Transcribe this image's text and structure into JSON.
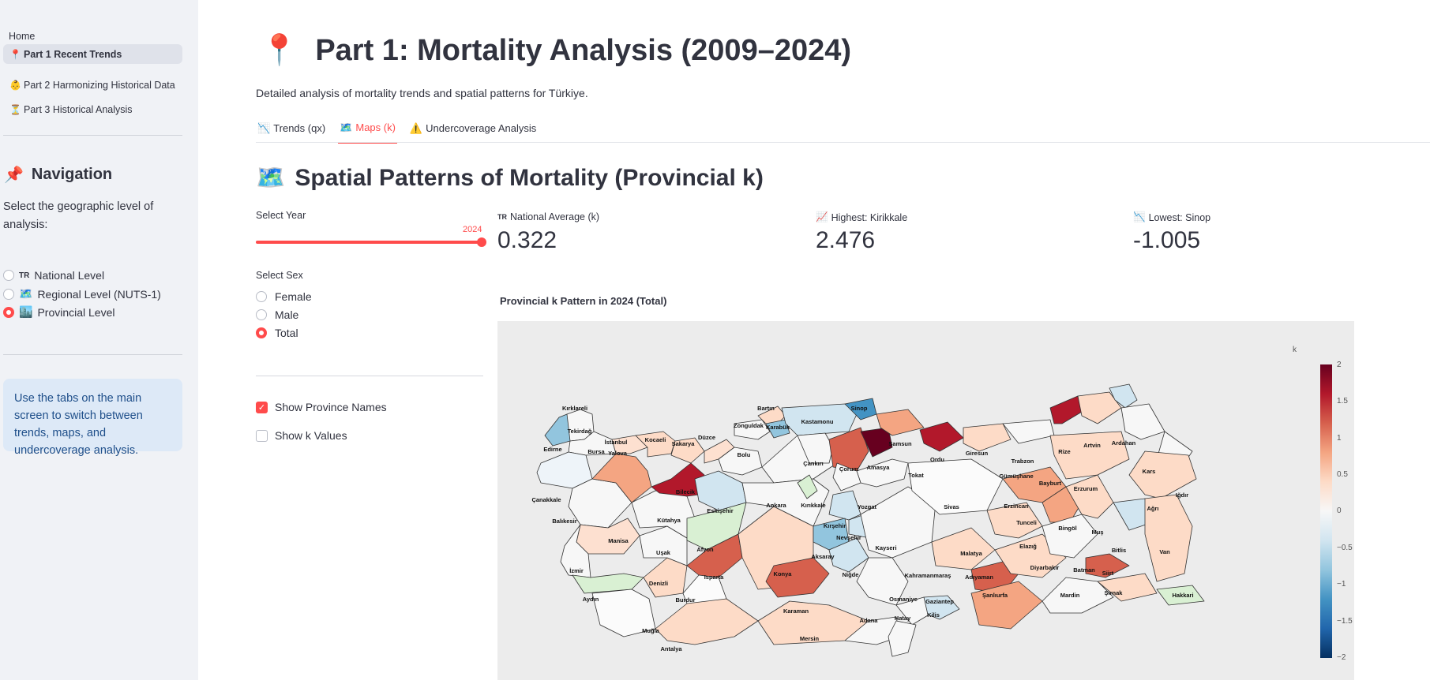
{
  "sidebar": {
    "home_label": "Home",
    "pages": [
      {
        "icon": "📍",
        "label": "Part 1 Recent Trends",
        "active": true
      },
      {
        "icon": "👶",
        "label": "Part 2 Harmonizing Historical Data",
        "active": false
      },
      {
        "icon": "⏳",
        "label": "Part 3 Historical Analysis",
        "active": false
      }
    ],
    "nav_icon": "📌",
    "nav_title": "Navigation",
    "nav_desc": "Select the geographic level of analysis:",
    "levels": [
      {
        "icon": "TR",
        "label": "National Level",
        "selected": false
      },
      {
        "icon": "🗺️",
        "label": "Regional Level (NUTS-1)",
        "selected": false
      },
      {
        "icon": "🏙️",
        "label": "Provincial Level",
        "selected": true
      }
    ],
    "info": "Use the tabs on the main screen to switch between trends, maps, and undercoverage analysis."
  },
  "header": {
    "icon": "📍",
    "title": "Part 1: Mortality Analysis (2009–2024)",
    "subtitle": "Detailed analysis of mortality trends and spatial patterns for Türkiye."
  },
  "tabs": [
    {
      "icon": "📉",
      "label": "Trends (qx)",
      "active": false
    },
    {
      "icon": "🗺️",
      "label": "Maps (k)",
      "active": true
    },
    {
      "icon": "⚠️",
      "label": "Undercoverage Analysis",
      "active": false
    }
  ],
  "section": {
    "icon": "🗺️",
    "title": "Spatial Patterns of Mortality (Provincial k)"
  },
  "controls": {
    "year_label": "Select Year",
    "year_value": "2024",
    "year_fraction": 1.0,
    "sex_label": "Select Sex",
    "sex_options": [
      {
        "label": "Female",
        "selected": false
      },
      {
        "label": "Male",
        "selected": false
      },
      {
        "label": "Total",
        "selected": true
      }
    ],
    "show_names_label": "Show Province Names",
    "show_names_checked": true,
    "show_values_label": "Show k Values",
    "show_values_checked": false
  },
  "metrics": [
    {
      "icon": "TR",
      "label": "National Average (k)",
      "value": "0.322"
    },
    {
      "icon": "📈",
      "label": "Highest: Kirikkale",
      "value": "2.476"
    },
    {
      "icon": "📉",
      "label": "Lowest: Sinop",
      "value": "-1.005"
    }
  ],
  "map": {
    "title": "Provincial k Pattern in 2024 (Total)",
    "colorbar_title": "k",
    "colorbar_ticks": [
      "2",
      "1.5",
      "1",
      "0.5",
      "0",
      "−0.5",
      "−1",
      "−1.5",
      "−2"
    ],
    "province_labels": [
      "Kırklareli",
      "Edirne",
      "Tekirdağ",
      "İstanbul",
      "Kocaeli",
      "Yalova",
      "Bursa",
      "Sakarya",
      "Düzce",
      "Zonguldak",
      "Bartın",
      "Karabük",
      "Kastamonu",
      "Sinop",
      "Bolu",
      "Çankırı",
      "Çorum",
      "Amasya",
      "Samsun",
      "Ordu",
      "Giresun",
      "Trabzon",
      "Rize",
      "Artvin",
      "Ardahan",
      "Kars",
      "Iğdır",
      "Ağrı",
      "Erzurum",
      "Bayburt",
      "Gümüşhane",
      "Tokat",
      "Sivas",
      "Erzincan",
      "Tunceli",
      "Bingöl",
      "Muş",
      "Bitlis",
      "Van",
      "Hakkari",
      "Şırnak",
      "Siirt",
      "Batman",
      "Mardin",
      "Diyarbakır",
      "Elazığ",
      "Malatya",
      "Adıyaman",
      "Şanlıurfa",
      "Gaziantep",
      "Kilis",
      "Hatay",
      "Osmaniye",
      "Adana",
      "Mersin",
      "Kahramanmaraş",
      "Kayseri",
      "Niğde",
      "Aksaray",
      "Nevşehir",
      "Kırşehir",
      "Yozgat",
      "Kırıkkale",
      "Ankara",
      "Eskişehir",
      "Bilecik",
      "Kütahya",
      "Afyon",
      "Uşak",
      "Manisa",
      "Balıkesir",
      "Çanakkale",
      "İzmir",
      "Aydın",
      "Denizli",
      "Muğla",
      "Burdur",
      "Isparta",
      "Antalya",
      "Konya",
      "Karaman"
    ]
  }
}
